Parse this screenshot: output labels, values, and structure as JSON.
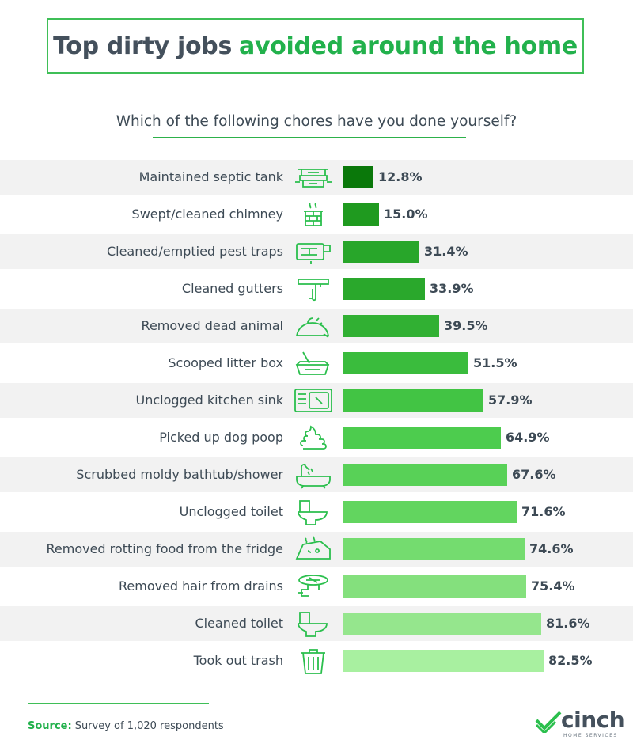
{
  "header": {
    "title_part1": "Top dirty jobs",
    "title_part2": "avoided around the home",
    "subtitle": "Which of the following chores have you done yourself?"
  },
  "colors": {
    "accent": "#22b14c",
    "text": "#3d4a55",
    "row_shade": "#f2f2f2",
    "bar_darkest": "#0a7a0a",
    "bar_lightest": "#a8f0a0"
  },
  "chart_data": {
    "type": "bar",
    "orientation": "horizontal",
    "title": "Top dirty jobs avoided around the home",
    "subtitle": "Which of the following chores have you done yourself?",
    "categories": [
      "Maintained septic tank",
      "Swept/cleaned chimney",
      "Cleaned/emptied pest traps",
      "Cleaned gutters",
      "Removed dead animal",
      "Scooped litter box",
      "Unclogged kitchen sink",
      "Picked up dog poop",
      "Scrubbed moldy bathtub/shower",
      "Unclogged toilet",
      "Removed rotting food from the fridge",
      "Removed hair from drains",
      "Cleaned toilet",
      "Took out trash"
    ],
    "values": [
      12.8,
      15.0,
      31.4,
      33.9,
      39.5,
      51.5,
      57.9,
      64.9,
      67.6,
      71.6,
      74.6,
      75.4,
      81.6,
      82.5
    ],
    "value_labels": [
      "12.8%",
      "15.0%",
      "31.4%",
      "33.9%",
      "39.5%",
      "51.5%",
      "57.9%",
      "64.9%",
      "67.6%",
      "71.6%",
      "74.6%",
      "75.4%",
      "81.6%",
      "82.5%"
    ],
    "icons": [
      "septic-tank-icon",
      "chimney-icon",
      "pest-trap-icon",
      "gutter-icon",
      "dead-animal-icon",
      "litter-box-icon",
      "kitchen-sink-icon",
      "dog-poop-icon",
      "bathtub-shower-icon",
      "toilet-icon",
      "rotting-food-icon",
      "drain-hair-icon",
      "toilet-icon",
      "trash-can-icon"
    ],
    "unit": "%",
    "xlim": [
      0,
      100
    ],
    "grid": false,
    "legend": "none"
  },
  "footer": {
    "source_label": "Source:",
    "source_text": "Survey of 1,020 respondents",
    "brand": "cinch",
    "brand_tagline": "HOME SERVICES"
  }
}
